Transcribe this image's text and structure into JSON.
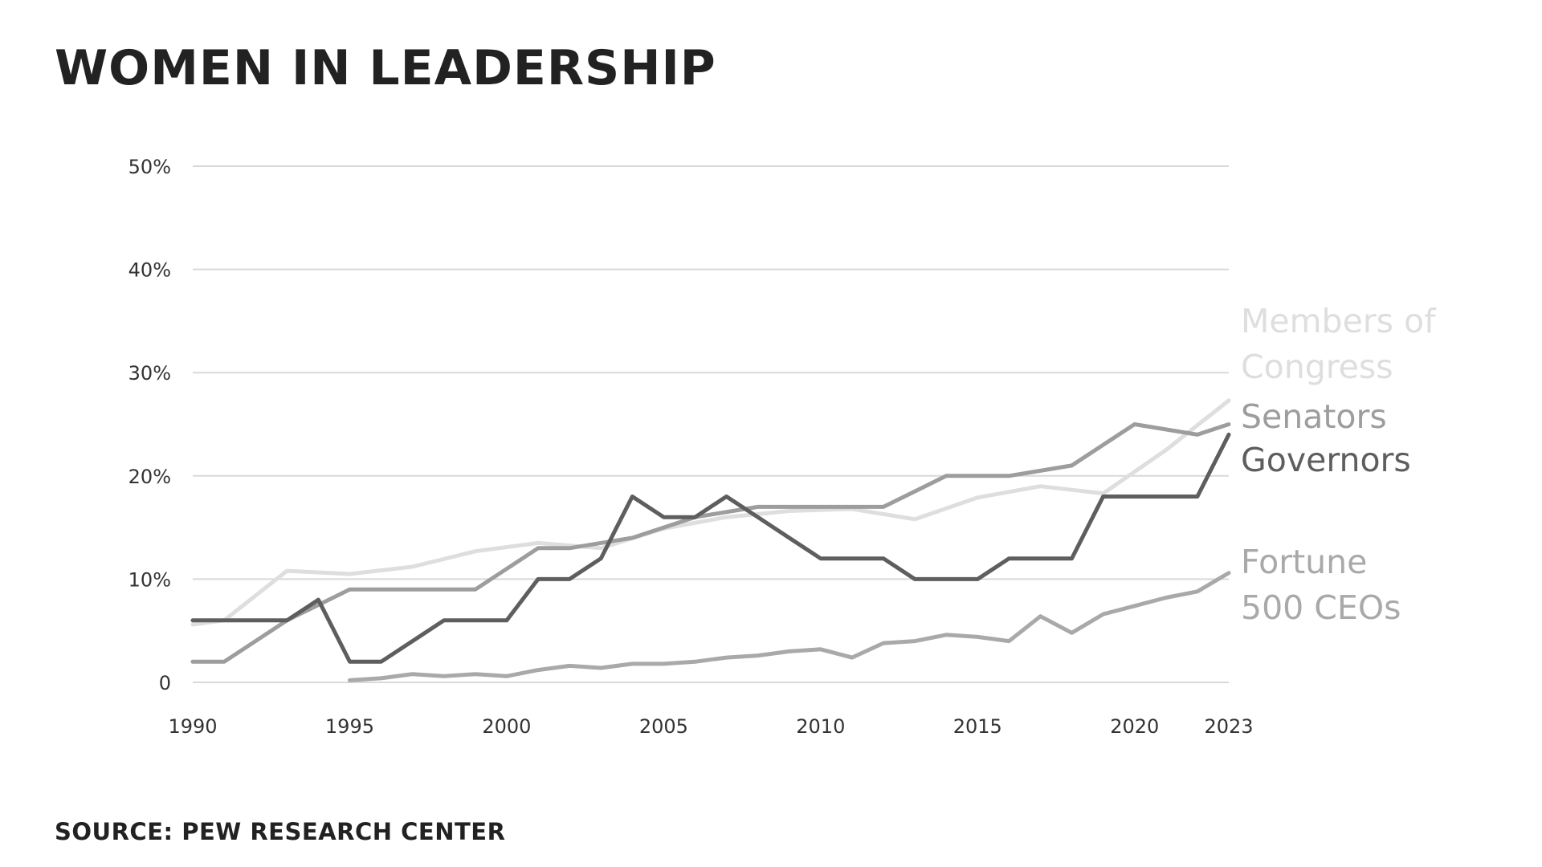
{
  "chart_data": {
    "type": "line",
    "title": "WOMEN IN LEADERSHIP",
    "source": "SOURCE: PEW RESEARCH CENTER",
    "xlabel": "",
    "ylabel": "",
    "xlim": [
      1990,
      2023
    ],
    "ylim": [
      0,
      50
    ],
    "x_ticks": [
      1990,
      1995,
      2000,
      2005,
      2010,
      2015,
      2020,
      2023
    ],
    "x_tick_labels": [
      "1990",
      "1995",
      "2000",
      "2005",
      "2010",
      "2015",
      "2020",
      "2023"
    ],
    "y_ticks": [
      0,
      10,
      20,
      30,
      40,
      50
    ],
    "y_tick_labels": [
      "0",
      "10%",
      "20%",
      "30%",
      "40%",
      "50%"
    ],
    "grid": true,
    "legend": "direct labels at right end of lines",
    "series": [
      {
        "name": "Members of Congress",
        "label_lines": [
          "Members of",
          "Congress"
        ],
        "color": "#dedede",
        "x": [
          1990,
          1991,
          1993,
          1995,
          1997,
          1999,
          2001,
          2003,
          2005,
          2007,
          2009,
          2011,
          2013,
          2015,
          2017,
          2019,
          2021,
          2023
        ],
        "y": [
          5.6,
          6.0,
          10.8,
          10.5,
          11.2,
          12.7,
          13.5,
          13.0,
          14.9,
          16.0,
          16.6,
          16.8,
          15.8,
          17.9,
          19.0,
          18.3,
          22.5,
          27.3
        ]
      },
      {
        "name": "Senators",
        "label_lines": [
          "Senators"
        ],
        "color": "#9d9d9d",
        "x": [
          1990,
          1991,
          1993,
          1995,
          1997,
          1999,
          2001,
          2002,
          2004,
          2006,
          2008,
          2010,
          2012,
          2014,
          2016,
          2018,
          2020,
          2022,
          2023
        ],
        "y": [
          2.0,
          2.0,
          6.0,
          9.0,
          9.0,
          9.0,
          13.0,
          13.0,
          14.0,
          16.0,
          17.0,
          17.0,
          17.0,
          20.0,
          20.0,
          21.0,
          25.0,
          24.0,
          25.0
        ]
      },
      {
        "name": "Governors",
        "label_lines": [
          "Governors"
        ],
        "color": "#5e5e5e",
        "x": [
          1990,
          1991,
          1992,
          1993,
          1994,
          1995,
          1996,
          1997,
          1998,
          1999,
          2000,
          2001,
          2002,
          2003,
          2004,
          2005,
          2006,
          2007,
          2008,
          2009,
          2010,
          2011,
          2012,
          2013,
          2014,
          2015,
          2016,
          2017,
          2018,
          2019,
          2020,
          2021,
          2022,
          2023
        ],
        "y": [
          6.0,
          6.0,
          6.0,
          6.0,
          8.0,
          2.0,
          2.0,
          4.0,
          6.0,
          6.0,
          6.0,
          10.0,
          10.0,
          12.0,
          18.0,
          16.0,
          16.0,
          18.0,
          16.0,
          14.0,
          12.0,
          12.0,
          12.0,
          10.0,
          10.0,
          10.0,
          12.0,
          12.0,
          12.0,
          18.0,
          18.0,
          18.0,
          18.0,
          24.0
        ]
      },
      {
        "name": "Fortune 500 CEOs",
        "label_lines": [
          "Fortune",
          "500 CEOs"
        ],
        "color": "#a9a9a9",
        "x": [
          1995,
          1996,
          1997,
          1998,
          1999,
          2000,
          2001,
          2002,
          2003,
          2004,
          2005,
          2006,
          2007,
          2008,
          2009,
          2010,
          2011,
          2012,
          2013,
          2014,
          2015,
          2016,
          2017,
          2018,
          2019,
          2020,
          2021,
          2022,
          2023
        ],
        "y": [
          0.2,
          0.4,
          0.8,
          0.6,
          0.8,
          0.6,
          1.2,
          1.6,
          1.4,
          1.8,
          1.8,
          2.0,
          2.4,
          2.6,
          3.0,
          3.2,
          2.4,
          3.8,
          4.0,
          4.6,
          4.4,
          4.0,
          6.4,
          4.8,
          6.6,
          7.4,
          8.2,
          8.8,
          10.6
        ]
      }
    ]
  }
}
